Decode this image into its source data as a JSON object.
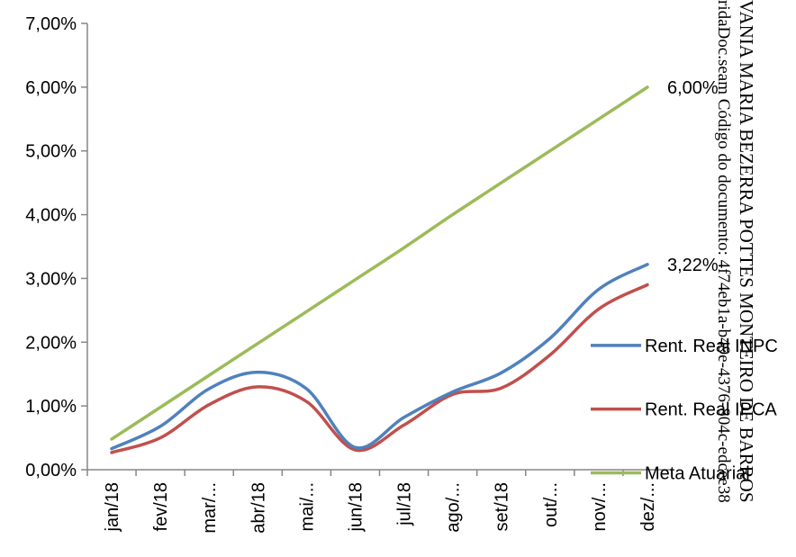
{
  "chart_data": {
    "type": "line",
    "categories": [
      "jan/18",
      "fev/18",
      "mar/...",
      "abr/18",
      "mai/...",
      "jun/18",
      "jul/18",
      "ago/...",
      "set/18",
      "out/...",
      "nov/...",
      "dez/..."
    ],
    "series": [
      {
        "name": "Rent. Real INPC",
        "color": "#4F81BD",
        "values": [
          0.33,
          0.68,
          1.27,
          1.53,
          1.27,
          0.35,
          0.82,
          1.22,
          1.52,
          2.06,
          2.83,
          3.22
        ]
      },
      {
        "name": "Rent. Real IPCA",
        "color": "#C0504D",
        "values": [
          0.27,
          0.5,
          1.02,
          1.3,
          1.07,
          0.31,
          0.7,
          1.18,
          1.28,
          1.8,
          2.52,
          2.9
        ]
      },
      {
        "name": "Meta Atuarial",
        "color": "#9BBB59",
        "values": [
          0.48,
          0.98,
          1.48,
          1.98,
          2.48,
          2.98,
          3.48,
          4.0,
          4.5,
          5.0,
          5.5,
          6.0
        ]
      }
    ],
    "y_ticks": [
      "0,00%",
      "1,00%",
      "2,00%",
      "3,00%",
      "4,00%",
      "5,00%",
      "6,00%",
      "7,00%"
    ],
    "ylim": [
      0,
      7
    ],
    "data_labels": [
      {
        "series": 2,
        "index": 11,
        "text": "6,00%"
      },
      {
        "series": 0,
        "index": 11,
        "text": "3,22%"
      }
    ],
    "legend_position": "right",
    "grid": false
  },
  "watermark": {
    "line1": "VANIA MARIA BEZERRA POTTES MONTEIRO DE BARROS",
    "line2": "ridaDoc.seam Código do documento: 4f74eb1a-b49e-4376-804c-edcee38"
  }
}
